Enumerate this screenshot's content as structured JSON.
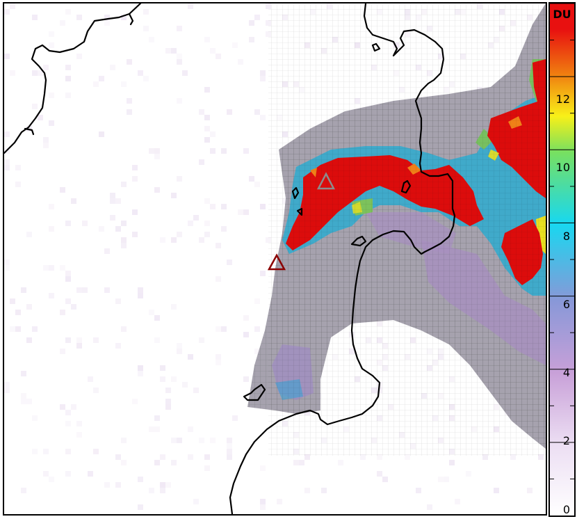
{
  "colorbar": {
    "unit_label": "DU",
    "ticks": [
      "0",
      "2",
      "4",
      "6",
      "8",
      "10",
      "12"
    ],
    "min": 0,
    "max": 14,
    "colors": [
      "#ffffff",
      "#c8a0d8",
      "#8898d8",
      "#18d8f0",
      "#78e060",
      "#f8f018",
      "#f08010",
      "#e81010"
    ]
  },
  "map": {
    "plume_colors": {
      "background": "#ffffff",
      "low": "#a0a0a8",
      "lavender": "#a888b8",
      "blue": "#6898c8",
      "cyan": "#20b0c8",
      "green": "#78c060",
      "yellow": "#e8e020",
      "orange": "#f08018",
      "red": "#dc0c0c"
    },
    "markers": [
      {
        "name": "volcano-marker-gray",
        "color": "#909090"
      },
      {
        "name": "volcano-marker-darkred",
        "color": "#8b0000"
      }
    ]
  }
}
